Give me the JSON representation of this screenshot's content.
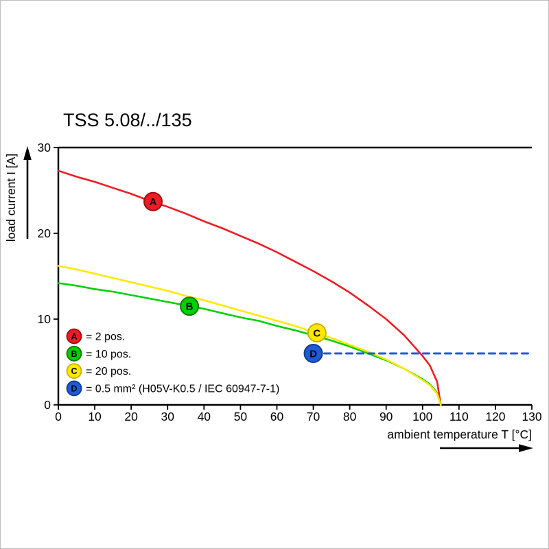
{
  "title": "TSS 5.08/../135",
  "chart_data": {
    "type": "line",
    "title": "TSS 5.08/../135",
    "xlabel": "ambient temperature T [°C]",
    "ylabel": "load current I [A]",
    "xlim": [
      0,
      130
    ],
    "ylim": [
      0,
      30
    ],
    "x_ticks": [
      0,
      10,
      20,
      30,
      40,
      50,
      60,
      70,
      80,
      90,
      100,
      110,
      120,
      130
    ],
    "y_ticks": [
      0,
      10,
      20,
      30
    ],
    "grid": false,
    "legend_position": "lower-left-inside",
    "series": [
      {
        "name": "A",
        "legend_label": "= 2 pos.",
        "color": "#ed1c24",
        "marker_border": "#9e0b0f",
        "style": "solid",
        "x": [
          0,
          5,
          10,
          15,
          20,
          25,
          30,
          35,
          40,
          45,
          50,
          55,
          60,
          65,
          70,
          75,
          80,
          85,
          90,
          95,
          100,
          102,
          104,
          105
        ],
        "y": [
          27.3,
          26.6,
          26.0,
          25.3,
          24.6,
          23.8,
          23.1,
          22.3,
          21.4,
          20.6,
          19.7,
          18.8,
          17.8,
          16.7,
          15.6,
          14.4,
          13.1,
          11.6,
          10.0,
          8.1,
          5.7,
          4.6,
          2.7,
          0
        ],
        "marker": {
          "x": 26,
          "y": 23.7
        }
      },
      {
        "name": "B",
        "legend_label": "= 10 pos.",
        "color": "#00d000",
        "marker_border": "#0a7a00",
        "style": "solid",
        "x": [
          0,
          5,
          10,
          15,
          20,
          25,
          30,
          35,
          40,
          45,
          50,
          55,
          60,
          65,
          70,
          75,
          80,
          85,
          90,
          95,
          100,
          102,
          104,
          105
        ],
        "y": [
          14.2,
          13.9,
          13.5,
          13.2,
          12.8,
          12.4,
          12.0,
          11.6,
          11.2,
          10.7,
          10.2,
          9.8,
          9.2,
          8.7,
          8.1,
          7.5,
          6.8,
          6.0,
          5.2,
          4.2,
          3.0,
          2.4,
          1.4,
          0
        ],
        "marker": {
          "x": 36,
          "y": 11.5
        }
      },
      {
        "name": "C",
        "legend_label": "= 20 pos.",
        "color": "#ffe800",
        "marker_border": "#c7b000",
        "style": "solid",
        "x": [
          0,
          5,
          10,
          15,
          20,
          25,
          30,
          35,
          40,
          45,
          50,
          55,
          60,
          65,
          70,
          75,
          80,
          85,
          90,
          95,
          100,
          102,
          104,
          105
        ],
        "y": [
          16.2,
          15.8,
          15.3,
          14.8,
          14.3,
          13.8,
          13.3,
          12.7,
          12.2,
          11.6,
          11.0,
          10.4,
          9.8,
          9.2,
          8.5,
          7.8,
          7.0,
          6.2,
          5.3,
          4.2,
          2.9,
          2.3,
          1.3,
          0
        ],
        "marker": {
          "x": 71,
          "y": 8.4
        }
      },
      {
        "name": "D",
        "legend_label": "= 0.5 mm² (H05V-K0.5 / IEC 60947-7-1)",
        "color": "#1e5bd6",
        "marker_border": "#123c8f",
        "style": "dashed",
        "x": [
          70,
          130
        ],
        "y": [
          6,
          6
        ],
        "marker": {
          "x": 70,
          "y": 6
        }
      }
    ]
  }
}
